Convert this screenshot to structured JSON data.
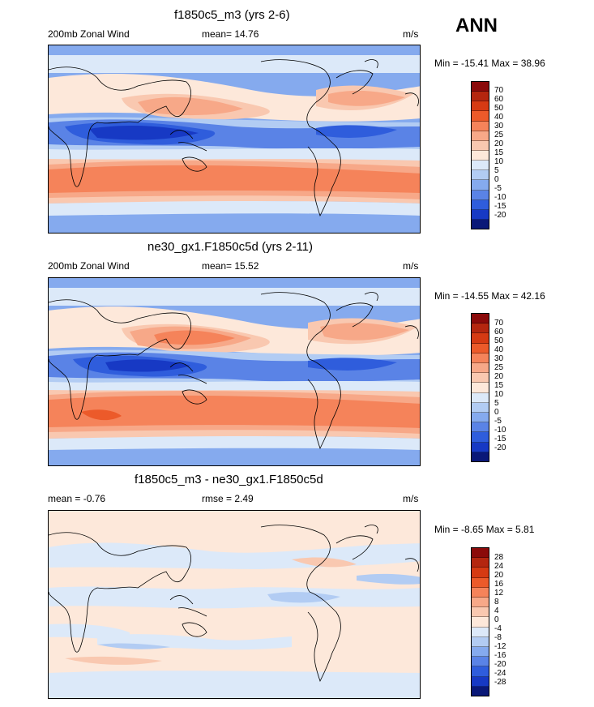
{
  "season": "ANN",
  "panels": [
    {
      "title": "f1850c5_m3 (yrs 2-6)",
      "left_label": "200mb Zonal Wind",
      "center_label": "mean=  14.76",
      "right_label": "m/s",
      "minmax": "Min = -15.41 Max =  38.96",
      "levels": [
        "70",
        "60",
        "50",
        "40",
        "30",
        "25",
        "20",
        "15",
        "10",
        "5",
        "0",
        "-5",
        "-10",
        "-15",
        "-20"
      ]
    },
    {
      "title": "ne30_gx1.F1850c5d (yrs 2-11)",
      "left_label": "200mb Zonal Wind",
      "center_label": "mean=  15.52",
      "right_label": "m/s",
      "minmax": "Min = -14.55 Max =  42.16",
      "levels": [
        "70",
        "60",
        "50",
        "40",
        "30",
        "25",
        "20",
        "15",
        "10",
        "5",
        "0",
        "-5",
        "-10",
        "-15",
        "-20"
      ]
    },
    {
      "title": "f1850c5_m3 - ne30_gx1.F1850c5d",
      "left_label": "mean =  -0.76",
      "center_label": "rmse =   2.49",
      "right_label": "m/s",
      "minmax": "Min =  -8.65 Max =   5.81",
      "levels": [
        "28",
        "24",
        "20",
        "16",
        "12",
        "8",
        "4",
        "0",
        "-4",
        "-8",
        "-12",
        "-16",
        "-20",
        "-24",
        "-28"
      ]
    }
  ],
  "colorbar_colors": [
    "#8b0a0a",
    "#b4260f",
    "#d63a13",
    "#ec5a2a",
    "#f5835a",
    "#f7a888",
    "#f9c8b0",
    "#fde8da",
    "#dce9f9",
    "#b2ccf3",
    "#85aaee",
    "#5a83e6",
    "#2f5ddc",
    "#1739c4",
    "#0a1878"
  ]
}
